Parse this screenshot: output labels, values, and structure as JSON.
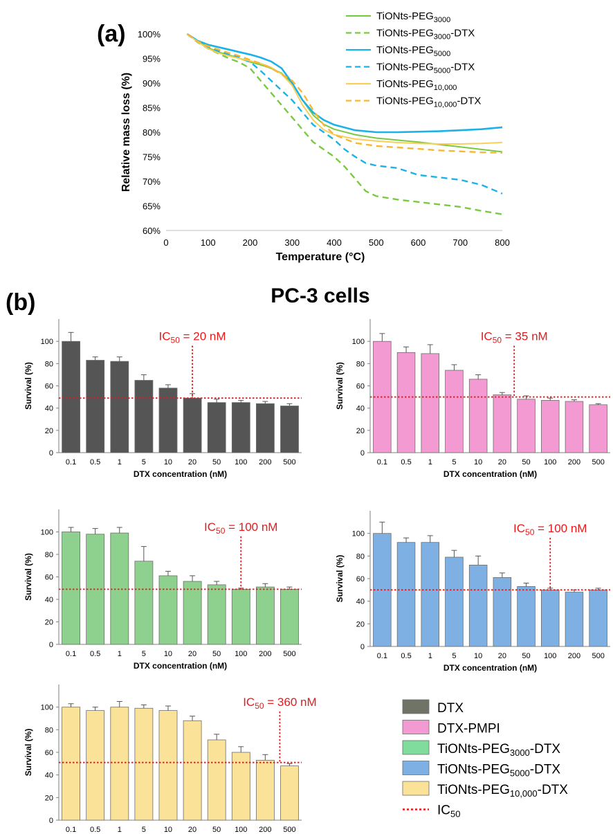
{
  "panel_a_label": "(a)",
  "panel_b_label": "(b)",
  "panel_b_title": "PC-3 cells",
  "chart_data": [
    {
      "type": "line",
      "xlabel": "Temperature (°C)",
      "ylabel": "Relative mass loss (%)",
      "xlim": [
        0,
        800
      ],
      "ylim": [
        60,
        100
      ],
      "xticks": [
        "0",
        "100",
        "200",
        "300",
        "400",
        "500",
        "600",
        "700",
        "800"
      ],
      "yticks": [
        "60%",
        "65%",
        "70%",
        "75%",
        "80%",
        "85%",
        "90%",
        "95%",
        "100%"
      ],
      "grid": false,
      "legend_position": "top-right",
      "series": [
        {
          "name": "TiONts-PEG",
          "sub": "3000",
          "suffix": "",
          "color": "#7ac943",
          "dash": false,
          "x": [
            50,
            75,
            100,
            125,
            150,
            175,
            200,
            225,
            250,
            275,
            300,
            325,
            350,
            375,
            400,
            450,
            500,
            550,
            600,
            650,
            700,
            750,
            800
          ],
          "y": [
            100,
            98.5,
            97.2,
            96.3,
            95.7,
            95.0,
            94.3,
            93.7,
            93.0,
            92.0,
            90.0,
            86.5,
            83.5,
            81.6,
            80.6,
            79.5,
            78.8,
            78.4,
            78.0,
            77.5,
            77.0,
            76.5,
            76.0
          ]
        },
        {
          "name": "TiONts-PEG",
          "sub": "3000",
          "suffix": "-DTX",
          "color": "#7ac943",
          "dash": true,
          "x": [
            50,
            75,
            100,
            125,
            150,
            175,
            200,
            225,
            250,
            275,
            300,
            325,
            350,
            375,
            400,
            425,
            450,
            475,
            500,
            550,
            600,
            650,
            700,
            750,
            800
          ],
          "y": [
            100,
            98.3,
            97.0,
            96.0,
            95.0,
            94.2,
            93.0,
            90.5,
            88.0,
            85.5,
            83.0,
            80.5,
            78.0,
            76.5,
            75.0,
            73.0,
            70.5,
            68.0,
            67.0,
            66.3,
            65.8,
            65.3,
            64.8,
            64.0,
            63.3
          ]
        },
        {
          "name": "TiONts-PEG",
          "sub": "5000",
          "suffix": "",
          "color": "#1ab2e8",
          "dash": false,
          "x": [
            50,
            75,
            100,
            125,
            150,
            175,
            200,
            225,
            250,
            275,
            300,
            325,
            350,
            375,
            400,
            450,
            500,
            550,
            600,
            650,
            700,
            750,
            800
          ],
          "y": [
            100,
            98.6,
            97.8,
            97.3,
            96.8,
            96.3,
            95.8,
            95.2,
            94.4,
            93.0,
            90.0,
            86.5,
            84.0,
            82.5,
            81.5,
            80.4,
            80.0,
            80.0,
            80.1,
            80.2,
            80.4,
            80.6,
            81.0
          ]
        },
        {
          "name": "TiONts-PEG",
          "sub": "5000",
          "suffix": "-DTX",
          "color": "#1ab2e8",
          "dash": true,
          "x": [
            50,
            75,
            100,
            125,
            150,
            175,
            200,
            225,
            250,
            275,
            300,
            325,
            350,
            375,
            400,
            425,
            450,
            475,
            500,
            550,
            600,
            650,
            700,
            750,
            800
          ],
          "y": [
            100,
            98.5,
            97.3,
            96.5,
            95.8,
            95.2,
            94.3,
            92.5,
            90.5,
            88.5,
            86.5,
            84.0,
            81.5,
            80.0,
            78.5,
            76.5,
            75.0,
            73.7,
            73.2,
            72.7,
            71.3,
            70.8,
            70.3,
            69.3,
            67.5
          ]
        },
        {
          "name": "TiONts-PEG",
          "sub": "10,000",
          "suffix": "",
          "color": "#f7d05a",
          "dash": false,
          "x": [
            50,
            75,
            100,
            125,
            150,
            175,
            200,
            225,
            250,
            275,
            300,
            325,
            350,
            375,
            400,
            450,
            500,
            550,
            600,
            650,
            700,
            750,
            800
          ],
          "y": [
            100,
            98.4,
            97.0,
            96.1,
            95.5,
            95.0,
            94.5,
            94.0,
            93.2,
            91.8,
            89.5,
            85.5,
            82.5,
            80.5,
            79.5,
            78.6,
            78.2,
            77.9,
            77.7,
            77.6,
            77.6,
            77.7,
            77.9
          ]
        },
        {
          "name": "TiONts-PEG",
          "sub": "10,000",
          "suffix": "-DTX",
          "color": "#f7b733",
          "dash": true,
          "x": [
            50,
            75,
            100,
            125,
            150,
            175,
            200,
            225,
            250,
            275,
            300,
            325,
            350,
            375,
            400,
            450,
            500,
            550,
            600,
            650,
            700,
            750,
            800
          ],
          "y": [
            100,
            98.5,
            97.5,
            96.8,
            96.1,
            95.5,
            94.7,
            94.0,
            93.0,
            91.8,
            90.5,
            88.0,
            84.5,
            81.5,
            79.5,
            77.8,
            77.2,
            76.9,
            76.6,
            76.3,
            76.1,
            75.9,
            75.8
          ]
        }
      ]
    },
    {
      "type": "bar",
      "name": "DTX",
      "color": "#555555",
      "categories": [
        "0.1",
        "0.5",
        "1",
        "5",
        "10",
        "20",
        "50",
        "100",
        "200",
        "500"
      ],
      "values": [
        100,
        83,
        82,
        65,
        58,
        49,
        45,
        45,
        44,
        42
      ],
      "errors": [
        8,
        3,
        4,
        5,
        3,
        4,
        3,
        2,
        2,
        2
      ],
      "ic50_text": "IC",
      "ic50_sub": "50",
      "ic50_value": " = 20 nM",
      "ic50_at": 5,
      "ic50_level": 49,
      "xlabel": "DTX concentration (nM)",
      "ylabel": "Survival (%)",
      "ylim": [
        0,
        120
      ],
      "yticks": [
        "0",
        "20",
        "40",
        "60",
        "80",
        "100"
      ]
    },
    {
      "type": "bar",
      "name": "DTX-PMPI",
      "color": "#f49ad3",
      "categories": [
        "0.1",
        "0.5",
        "1",
        "5",
        "10",
        "20",
        "50",
        "100",
        "200",
        "500"
      ],
      "values": [
        100,
        90,
        89,
        74,
        66,
        52,
        48,
        47,
        46,
        43
      ],
      "errors": [
        7,
        5,
        8,
        5,
        4,
        2,
        3,
        2,
        1.5,
        1
      ],
      "ic50_text": "IC",
      "ic50_sub": "50",
      "ic50_value": " = 35 nM",
      "ic50_at": 5.5,
      "ic50_level": 50,
      "xlabel": "DTX concentration (nM)",
      "ylabel": "Survival (%)",
      "ylim": [
        0,
        120
      ],
      "yticks": [
        "0",
        "20",
        "40",
        "60",
        "80",
        "100"
      ]
    },
    {
      "type": "bar",
      "name": "TiONts-PEG3000-DTX",
      "color": "#8ed08e",
      "categories": [
        "0.1",
        "0.5",
        "1",
        "5",
        "10",
        "20",
        "50",
        "100",
        "200",
        "500"
      ],
      "values": [
        100,
        98,
        99,
        74,
        61,
        56,
        53,
        49,
        51,
        49
      ],
      "errors": [
        4,
        5,
        5,
        13,
        4,
        5,
        3,
        1,
        3,
        2
      ],
      "ic50_text": "IC",
      "ic50_sub": "50",
      "ic50_value": " = 100 nM",
      "ic50_at": 7,
      "ic50_level": 49,
      "xlabel": "DTX concentration (nM)",
      "ylabel": "Survival (%)",
      "ylim": [
        0,
        120
      ],
      "yticks": [
        "0",
        "20",
        "40",
        "60",
        "80",
        "100"
      ]
    },
    {
      "type": "bar",
      "name": "TiONts-PEG5000-DTX",
      "color": "#7fb0e3",
      "categories": [
        "0.1",
        "0.5",
        "1",
        "5",
        "10",
        "20",
        "50",
        "100",
        "200",
        "500"
      ],
      "values": [
        100,
        92,
        92,
        79,
        72,
        61,
        53,
        50,
        48,
        50
      ],
      "errors": [
        10,
        4,
        6,
        6,
        8,
        4,
        3,
        1.5,
        2,
        1.5
      ],
      "ic50_text": "IC",
      "ic50_sub": "50",
      "ic50_value": " = 100 nM",
      "ic50_at": 7,
      "ic50_level": 50,
      "xlabel": "DTX concentration (nM)",
      "ylabel": "Survival (%)",
      "ylim": [
        0,
        120
      ],
      "yticks": [
        "0",
        "20",
        "40",
        "60",
        "80",
        "100"
      ]
    },
    {
      "type": "bar",
      "name": "TiONts-PEG10,000-DTX",
      "color": "#fbe299",
      "categories": [
        "0.1",
        "0.5",
        "1",
        "5",
        "10",
        "20",
        "50",
        "100",
        "200",
        "500"
      ],
      "values": [
        100,
        97,
        100,
        99,
        97,
        88,
        71,
        60,
        53,
        48
      ],
      "errors": [
        3,
        3,
        5,
        3,
        4,
        4,
        5,
        5,
        5,
        2
      ],
      "ic50_text": "IC",
      "ic50_sub": "50",
      "ic50_value": " = 360 nM",
      "ic50_at": 8.6,
      "ic50_level": 51,
      "xlabel": "DTX concentration (nM)",
      "ylabel": "Survival (%)",
      "ylim": [
        0,
        120
      ],
      "yticks": [
        "0",
        "20",
        "40",
        "60",
        "80",
        "100"
      ]
    }
  ],
  "legend_b": [
    {
      "main": "DTX",
      "sub": "",
      "suffix": "",
      "color": "#6f7466",
      "kind": "box"
    },
    {
      "main": "DTX-PMPI",
      "sub": "",
      "suffix": "",
      "color": "#f49ad3",
      "kind": "box"
    },
    {
      "main": "TiONts-PEG",
      "sub": "3000",
      "suffix": "-DTX",
      "color": "#7fdc9c",
      "kind": "box"
    },
    {
      "main": "TiONts-PEG",
      "sub": "5000",
      "suffix": "-DTX",
      "color": "#7fb0e3",
      "kind": "box"
    },
    {
      "main": "TiONts-PEG",
      "sub": "10,000",
      "suffix": "-DTX",
      "color": "#fbe299",
      "kind": "box"
    },
    {
      "main": "IC",
      "sub": "50",
      "suffix": "",
      "color": "#e41a1c",
      "kind": "dotted"
    }
  ]
}
